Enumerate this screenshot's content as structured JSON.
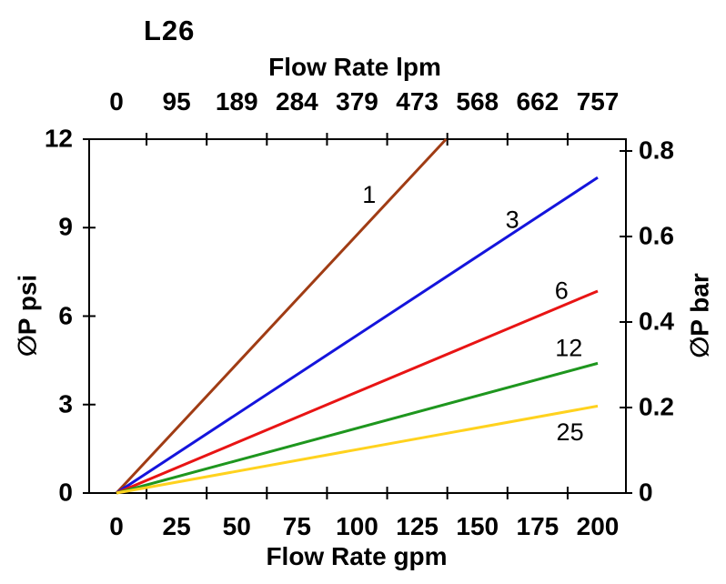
{
  "chart_data": {
    "type": "line",
    "title": "L26",
    "top_axis": {
      "title": "Flow Rate lpm",
      "labels": [
        "0",
        "95",
        "189",
        "284",
        "379",
        "473",
        "568",
        "662",
        "757"
      ],
      "label_positions_gpm": [
        0,
        25,
        50,
        75,
        100,
        125,
        150,
        175,
        200
      ]
    },
    "bottom_axis": {
      "title": "Flow Rate gpm",
      "labels": [
        "0",
        "25",
        "50",
        "75",
        "100",
        "125",
        "150",
        "175",
        "200"
      ],
      "label_positions_gpm": [
        0,
        25,
        50,
        75,
        100,
        125,
        150,
        175,
        200
      ],
      "tick_marks_gpm": [
        12.5,
        37.5,
        62.5,
        87.5,
        112.5,
        137.5,
        162.5,
        187.5
      ],
      "range_gpm": [
        0,
        200
      ]
    },
    "left_axis": {
      "title": "∅P psi",
      "labels": [
        "0",
        "3",
        "6",
        "9",
        "12"
      ],
      "tick_values_psi": [
        0,
        3,
        6,
        9,
        12
      ],
      "range_psi": [
        0,
        12
      ]
    },
    "right_axis": {
      "title": "∅P bar",
      "labels": [
        "0",
        "0.2",
        "0.4",
        "0.6",
        "0.8"
      ],
      "tick_values_bar": [
        0,
        0.2,
        0.4,
        0.6,
        0.8
      ],
      "psi_per_bar": 14.5
    },
    "grid": false,
    "legend": "inline-labels-on-lines",
    "series": [
      {
        "name": "1",
        "color": "#A03C14",
        "points": [
          [
            0,
            0
          ],
          [
            137,
            12
          ]
        ],
        "label_pos": [
          105,
          10.15
        ]
      },
      {
        "name": "3",
        "color": "#1414DC",
        "points": [
          [
            0,
            0
          ],
          [
            200,
            10.7
          ]
        ],
        "label_pos": [
          164.5,
          9.3
        ]
      },
      {
        "name": "6",
        "color": "#E81414",
        "points": [
          [
            0,
            0
          ],
          [
            200,
            6.85
          ]
        ],
        "label_pos": [
          185,
          6.9
        ]
      },
      {
        "name": "12",
        "color": "#1E961E",
        "points": [
          [
            0,
            0
          ],
          [
            200,
            4.4
          ]
        ],
        "label_pos": [
          188,
          4.95
        ]
      },
      {
        "name": "25",
        "color": "#FFD21E",
        "points": [
          [
            0,
            0
          ],
          [
            200,
            2.95
          ]
        ],
        "label_pos": [
          188.5,
          2.1
        ]
      }
    ]
  }
}
